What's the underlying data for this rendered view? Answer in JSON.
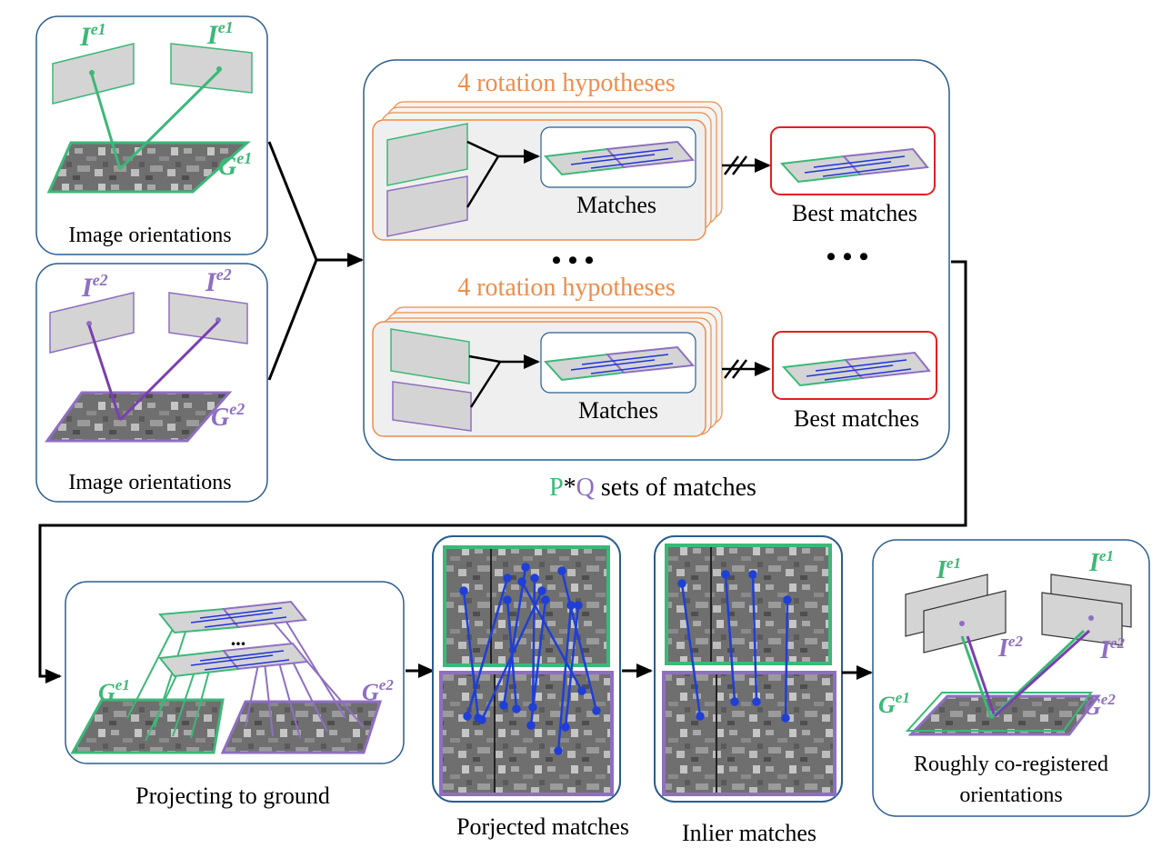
{
  "colors": {
    "green": "#3cb878",
    "purple": "#8e6fc1",
    "orange": "#ef8c4a",
    "red": "#e02020",
    "blue": "#1f3fd6",
    "panel_border": "#2a5d8f",
    "gray_fill": "#d4d4d4",
    "match_line": "#2233dd"
  },
  "labels": {
    "image_orientations_1": "Image orientations",
    "image_orientations_2": "Image orientations",
    "rotation_hyp_1": "4 rotation hypotheses",
    "rotation_hyp_2": "4 rotation hypotheses",
    "matches_1": "Matches",
    "matches_2": "Matches",
    "best_matches_1": "Best matches",
    "best_matches_2": "Best matches",
    "ellipsis": "• • •",
    "small_ellipsis": "...",
    "pq_p": "P",
    "pq_star": "*",
    "pq_q": "Q",
    "pq_rest": " sets of matches",
    "projecting": "Projecting to ground",
    "projected_matches": "Porjected matches",
    "inlier_matches": "Inlier matches",
    "rough_1": "Roughly co-registered",
    "rough_2": "orientations"
  },
  "symbols": {
    "I": "I",
    "G": "G",
    "e1": "e1",
    "e2": "e2"
  }
}
